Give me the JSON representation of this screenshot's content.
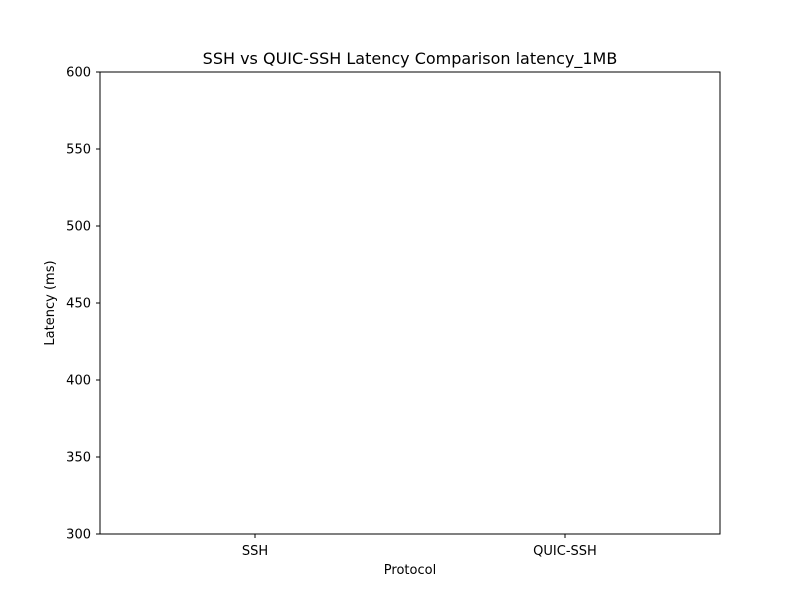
{
  "chart_data": {
    "type": "bar",
    "title": "SSH vs QUIC-SSH Latency Comparison latency_1MB",
    "xlabel": "Protocol",
    "ylabel": "Latency (ms)",
    "categories": [
      "SSH",
      "QUIC-SSH"
    ],
    "values": [
      null,
      null
    ],
    "ylim": [
      300,
      600
    ],
    "yticks": [
      300,
      350,
      400,
      450,
      500,
      550,
      600
    ],
    "grid": false,
    "legend": "none",
    "colors": {
      "axis": "#000000",
      "background": "#ffffff"
    }
  }
}
